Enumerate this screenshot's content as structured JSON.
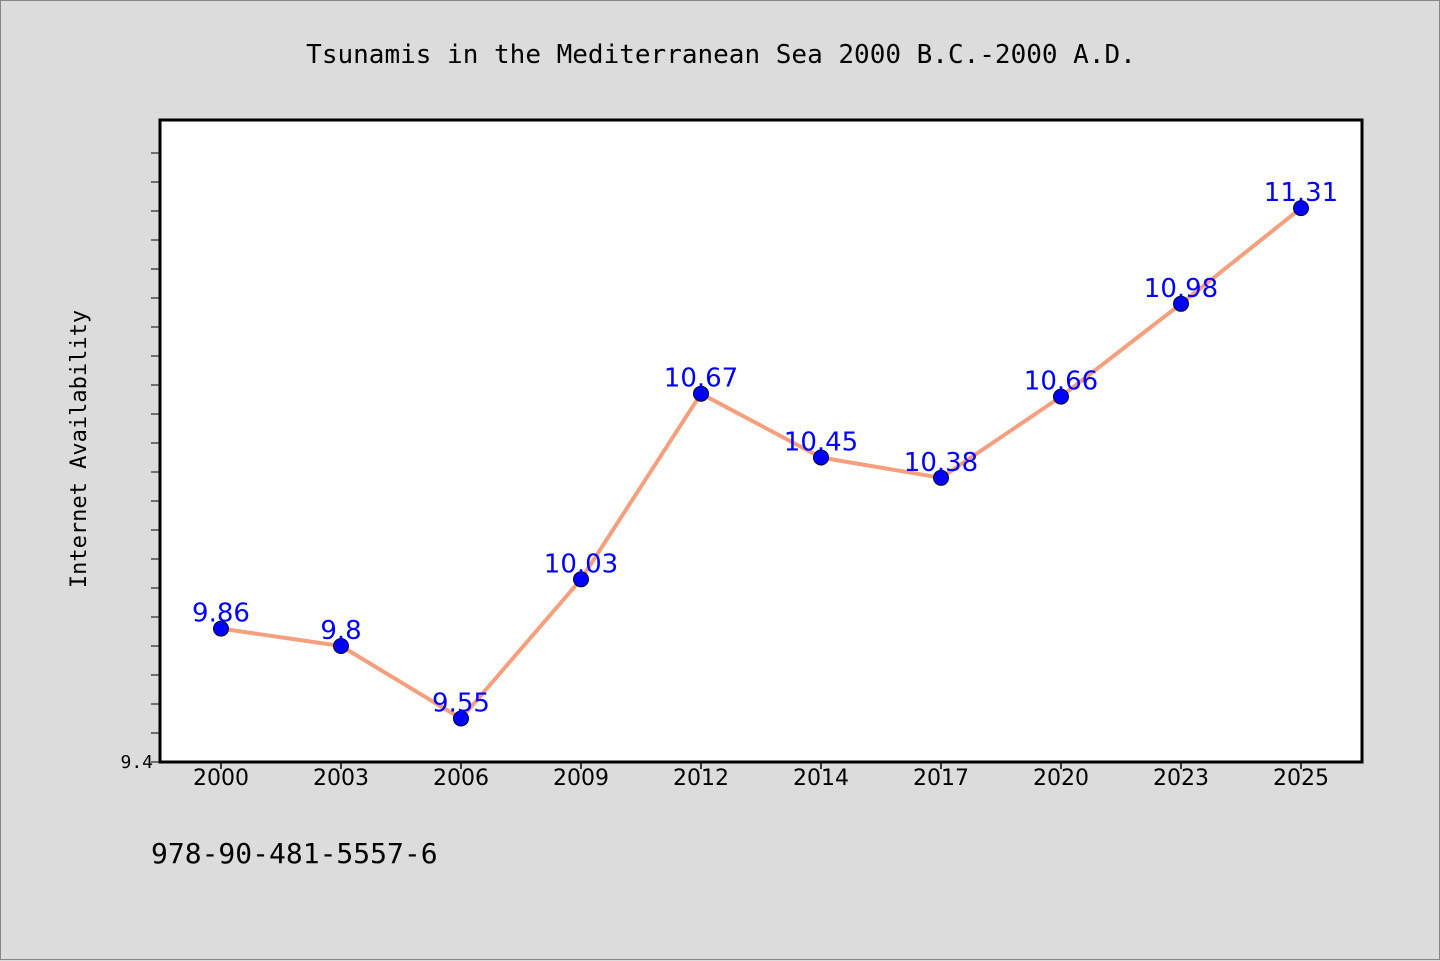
{
  "chart_data": {
    "type": "line",
    "title": "Tsunamis in the Mediterranean Sea 2000 B.C.-2000 A.D.",
    "ylabel": "Internet Availability",
    "xlabel": "",
    "categories": [
      "2000",
      "2003",
      "2006",
      "2009",
      "2012",
      "2014",
      "2017",
      "2020",
      "2023",
      "2025"
    ],
    "series": [
      {
        "values": [
          9.86,
          9.8,
          9.55,
          10.03,
          10.67,
          10.45,
          10.38,
          10.66,
          10.98,
          11.31
        ],
        "labels": [
          "9.86",
          "9.8",
          "9.55",
          "10.03",
          "10.67",
          "10.45",
          "10.38",
          "10.66",
          "10.98",
          "11.31"
        ]
      }
    ],
    "y_min_label": "9.4",
    "ylim": [
      9.4,
      11.6
    ],
    "grid": false,
    "line_color": "#f4a07e",
    "marker_color": "#0000ff",
    "label_color": "#0000ff"
  },
  "footer": {
    "isbn": "978-90-481-5557-6"
  }
}
